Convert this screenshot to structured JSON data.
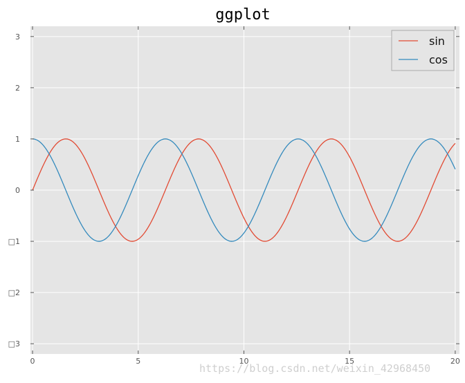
{
  "chart_data": {
    "type": "line",
    "title": "ggplot",
    "xlabel": "",
    "ylabel": "",
    "xlim": [
      -0.1,
      20.2
    ],
    "ylim": [
      -3.2,
      3.2
    ],
    "x_ticks": [
      0,
      5,
      10,
      15,
      20
    ],
    "x_tick_labels": [
      "0",
      "5",
      "10",
      "15",
      "20"
    ],
    "y_ticks": [
      3,
      2,
      1,
      0,
      -1,
      -2,
      -3
    ],
    "y_tick_labels": [
      "3",
      "2",
      "1",
      "0",
      "□1",
      "□2",
      "□3"
    ],
    "grid": true,
    "legend_position": "top-right",
    "series": [
      {
        "name": "sin",
        "function": "sin",
        "x_start": 0,
        "x_end": 20,
        "color": "#E24A33"
      },
      {
        "name": "cos",
        "function": "cos",
        "x_start": 0,
        "x_end": 20,
        "color": "#348ABD"
      }
    ],
    "background_color": "#E5E5E5",
    "grid_color": "#FFFFFF"
  },
  "watermark": "https://blog.csdn.net/weixin_42968450"
}
